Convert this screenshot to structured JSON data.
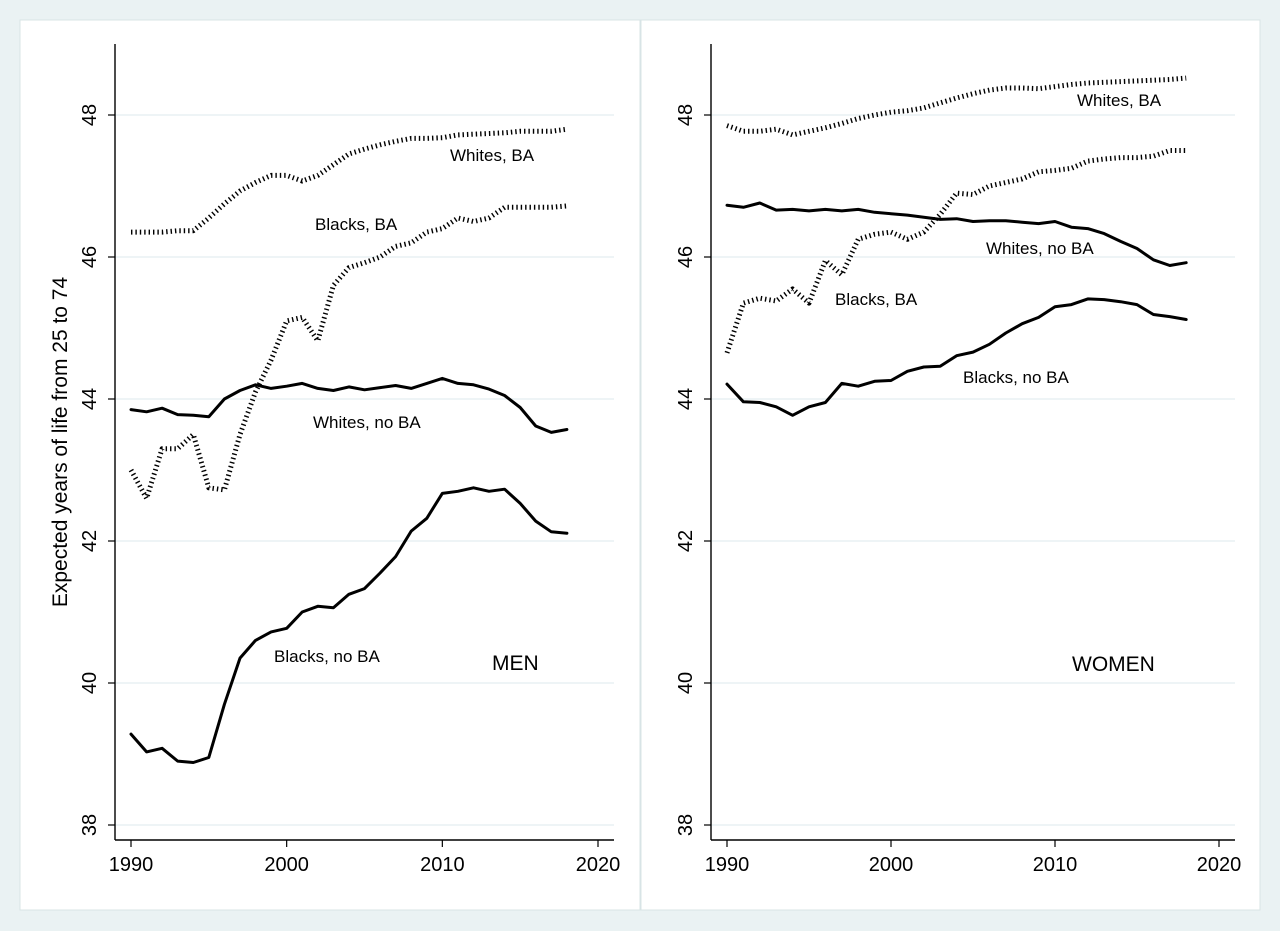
{
  "chart_data": {
    "type": "line",
    "ylabel": "Expected years of life from 25 to 74",
    "xlim": [
      1990,
      2020
    ],
    "ylim": [
      38,
      49
    ],
    "xticks": [
      1990,
      2000,
      2010,
      2020
    ],
    "yticks": [
      38,
      40,
      42,
      44,
      46,
      48
    ],
    "grid": true,
    "panels": [
      {
        "title": "MEN",
        "series": [
          {
            "name": "Whites, BA",
            "style": "dotted",
            "x": [
              1990,
              1991,
              1992,
              1993,
              1994,
              1995,
              1996,
              1997,
              1998,
              1999,
              2000,
              2001,
              2002,
              2003,
              2004,
              2005,
              2006,
              2007,
              2008,
              2009,
              2010,
              2011,
              2012,
              2013,
              2014,
              2015,
              2016,
              2017,
              2018
            ],
            "y": [
              46.35,
              46.35,
              46.35,
              46.37,
              46.37,
              46.55,
              46.75,
              46.93,
              47.05,
              47.15,
              47.15,
              47.07,
              47.15,
              47.3,
              47.45,
              47.52,
              47.58,
              47.63,
              47.67,
              47.67,
              47.68,
              47.72,
              47.73,
              47.74,
              47.75,
              47.77,
              47.77,
              47.77,
              47.8
            ]
          },
          {
            "name": "Blacks, BA",
            "style": "dotted",
            "x": [
              1990,
              1991,
              1992,
              1993,
              1994,
              1995,
              1996,
              1997,
              1998,
              1999,
              2000,
              2001,
              2002,
              2003,
              2004,
              2005,
              2006,
              2007,
              2008,
              2009,
              2010,
              2011,
              2012,
              2013,
              2014,
              2015,
              2016,
              2017,
              2018
            ],
            "y": [
              43.0,
              42.6,
              43.3,
              43.3,
              43.5,
              42.75,
              42.72,
              43.5,
              44.1,
              44.55,
              45.1,
              45.15,
              44.82,
              45.6,
              45.85,
              45.92,
              46.0,
              46.15,
              46.2,
              46.35,
              46.4,
              46.55,
              46.5,
              46.55,
              46.7,
              46.7,
              46.7,
              46.7,
              46.72
            ]
          },
          {
            "name": "Whites, no BA",
            "style": "solid",
            "x": [
              1990,
              1991,
              1992,
              1993,
              1994,
              1995,
              1996,
              1997,
              1998,
              1999,
              2000,
              2001,
              2002,
              2003,
              2004,
              2005,
              2006,
              2007,
              2008,
              2009,
              2010,
              2011,
              2012,
              2013,
              2014,
              2015,
              2016,
              2017,
              2018
            ],
            "y": [
              43.85,
              43.82,
              43.87,
              43.78,
              43.77,
              43.75,
              44.0,
              44.12,
              44.2,
              44.15,
              44.18,
              44.22,
              44.15,
              44.12,
              44.17,
              44.13,
              44.16,
              44.19,
              44.15,
              44.22,
              44.29,
              44.22,
              44.2,
              44.14,
              44.05,
              43.88,
              43.62,
              43.53,
              43.57
            ]
          },
          {
            "name": "Blacks, no BA",
            "style": "solid",
            "x": [
              1990,
              1991,
              1992,
              1993,
              1994,
              1995,
              1996,
              1997,
              1998,
              1999,
              2000,
              2001,
              2002,
              2003,
              2004,
              2005,
              2006,
              2007,
              2008,
              2009,
              2010,
              2011,
              2012,
              2013,
              2014,
              2015,
              2016,
              2017,
              2018
            ],
            "y": [
              39.28,
              39.03,
              39.08,
              38.9,
              38.88,
              38.95,
              39.7,
              40.35,
              40.6,
              40.72,
              40.77,
              41.0,
              41.08,
              41.06,
              41.25,
              41.33,
              41.55,
              41.78,
              42.14,
              42.32,
              42.67,
              42.7,
              42.75,
              42.7,
              42.73,
              42.53,
              42.28,
              42.13,
              42.11
            ]
          }
        ],
        "labels": [
          "Whites, BA",
          "Blacks, BA",
          "Whites, no BA",
          "Blacks, no BA"
        ]
      },
      {
        "title": "WOMEN",
        "series": [
          {
            "name": "Whites, BA",
            "style": "dotted",
            "x": [
              1990,
              1991,
              1992,
              1993,
              1994,
              1995,
              1996,
              1997,
              1998,
              1999,
              2000,
              2001,
              2002,
              2003,
              2004,
              2005,
              2006,
              2007,
              2008,
              2009,
              2010,
              2011,
              2012,
              2013,
              2014,
              2015,
              2016,
              2017,
              2018
            ],
            "y": [
              47.85,
              47.77,
              47.77,
              47.8,
              47.72,
              47.77,
              47.82,
              47.88,
              47.95,
              48.0,
              48.04,
              48.06,
              48.1,
              48.17,
              48.24,
              48.3,
              48.35,
              48.38,
              48.38,
              48.37,
              48.4,
              48.43,
              48.45,
              48.46,
              48.47,
              48.48,
              48.49,
              48.5,
              48.52
            ]
          },
          {
            "name": "Blacks, BA",
            "style": "dotted",
            "x": [
              1990,
              1991,
              1992,
              1993,
              1994,
              1995,
              1996,
              1997,
              1998,
              1999,
              2000,
              2001,
              2002,
              2003,
              2004,
              2005,
              2006,
              2007,
              2008,
              2009,
              2010,
              2011,
              2012,
              2013,
              2014,
              2015,
              2016,
              2017,
              2018
            ],
            "y": [
              44.65,
              45.35,
              45.42,
              45.38,
              45.55,
              45.35,
              45.95,
              45.75,
              46.25,
              46.32,
              46.35,
              46.25,
              46.35,
              46.6,
              46.9,
              46.88,
              47.0,
              47.05,
              47.1,
              47.2,
              47.22,
              47.25,
              47.35,
              47.38,
              47.4,
              47.4,
              47.42,
              47.5,
              47.5
            ]
          },
          {
            "name": "Whites, no BA",
            "style": "solid",
            "x": [
              1990,
              1991,
              1992,
              1993,
              1994,
              1995,
              1996,
              1997,
              1998,
              1999,
              2000,
              2001,
              2002,
              2003,
              2004,
              2005,
              2006,
              2007,
              2008,
              2009,
              2010,
              2011,
              2012,
              2013,
              2014,
              2015,
              2016,
              2017,
              2018
            ],
            "y": [
              46.73,
              46.7,
              46.76,
              46.66,
              46.67,
              46.65,
              46.67,
              46.65,
              46.67,
              46.63,
              46.61,
              46.59,
              46.56,
              46.53,
              46.54,
              46.5,
              46.51,
              46.51,
              46.49,
              46.47,
              46.5,
              46.42,
              46.4,
              46.33,
              46.22,
              46.12,
              45.96,
              45.88,
              45.92
            ]
          },
          {
            "name": "Blacks, no BA",
            "style": "solid",
            "x": [
              1990,
              1991,
              1992,
              1993,
              1994,
              1995,
              1996,
              1997,
              1998,
              1999,
              2000,
              2001,
              2002,
              2003,
              2004,
              2005,
              2006,
              2007,
              2008,
              2009,
              2010,
              2011,
              2012,
              2013,
              2014,
              2015,
              2016,
              2017,
              2018
            ],
            "y": [
              44.21,
              43.96,
              43.95,
              43.89,
              43.77,
              43.89,
              43.95,
              44.22,
              44.18,
              44.25,
              44.26,
              44.39,
              44.45,
              44.46,
              44.61,
              44.66,
              44.77,
              44.93,
              45.06,
              45.15,
              45.3,
              45.33,
              45.41,
              45.4,
              45.37,
              45.33,
              45.19,
              45.16,
              45.12
            ]
          }
        ],
        "labels": [
          "Whites, BA",
          "Blacks, BA",
          "Whites, no BA",
          "Blacks, no BA"
        ]
      }
    ]
  }
}
